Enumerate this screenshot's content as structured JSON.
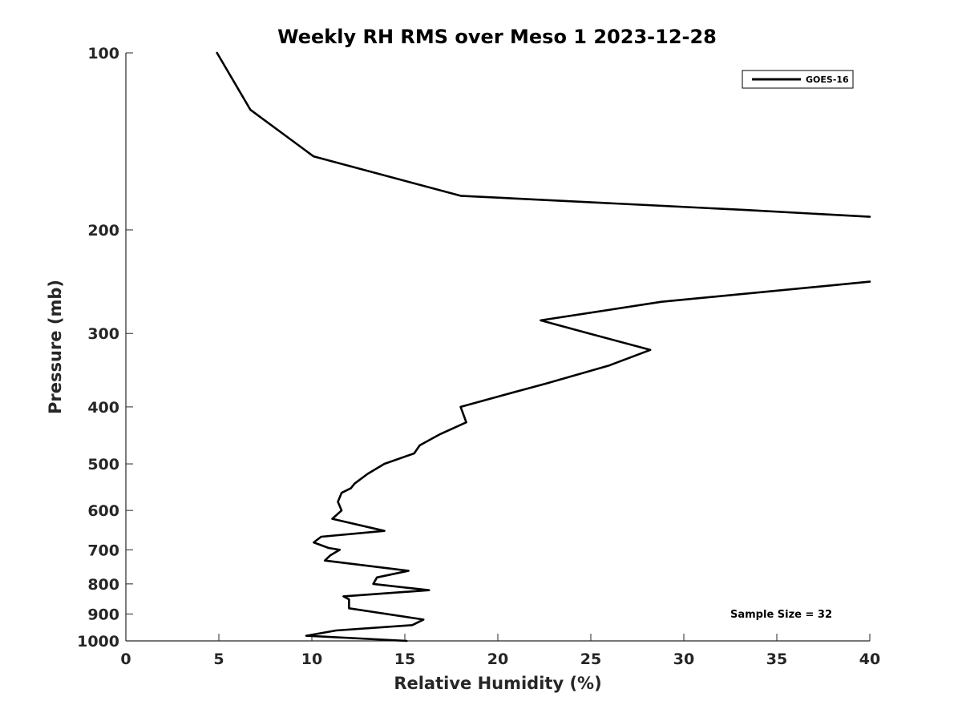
{
  "chart_data": {
    "type": "line",
    "title": "Weekly RH RMS over Meso 1 2023-12-28",
    "xlabel": "Relative Humidity (%)",
    "ylabel": "Pressure (mb)",
    "xlim": [
      0,
      40
    ],
    "ylim": [
      100,
      1000
    ],
    "y_scale": "log",
    "y_reversed": true,
    "x_ticks": [
      0,
      5,
      10,
      15,
      20,
      25,
      30,
      35,
      40
    ],
    "y_ticks": [
      100,
      200,
      300,
      400,
      500,
      600,
      700,
      800,
      900,
      1000
    ],
    "grid": false,
    "legend_position": "top-right",
    "annotation": "Sample Size = 32",
    "series": [
      {
        "name": "GOES-16",
        "color": "#000000",
        "points": [
          [
            4.9,
            100
          ],
          [
            6.7,
            125
          ],
          [
            10.1,
            150
          ],
          [
            18.0,
            175
          ],
          [
            33.3,
            185
          ],
          [
            40,
            190
          ],
          [
            null,
            null
          ],
          [
            40,
            245
          ],
          [
            28.8,
            265
          ],
          [
            22.3,
            285
          ],
          [
            24.9,
            300
          ],
          [
            28.2,
            320
          ],
          [
            26.0,
            340
          ],
          [
            22.6,
            365
          ],
          [
            19.9,
            385
          ],
          [
            18.0,
            400
          ],
          [
            18.3,
            425
          ],
          [
            16.9,
            445
          ],
          [
            15.8,
            465
          ],
          [
            15.5,
            480
          ],
          [
            13.9,
            500
          ],
          [
            13.0,
            520
          ],
          [
            12.3,
            540
          ],
          [
            12.1,
            550
          ],
          [
            11.6,
            560
          ],
          [
            11.4,
            580
          ],
          [
            11.6,
            600
          ],
          [
            11.1,
            620
          ],
          [
            13.9,
            650
          ],
          [
            10.5,
            665
          ],
          [
            10.1,
            680
          ],
          [
            10.9,
            695
          ],
          [
            11.5,
            700
          ],
          [
            11.0,
            715
          ],
          [
            10.7,
            730
          ],
          [
            15.2,
            760
          ],
          [
            13.5,
            780
          ],
          [
            13.3,
            800
          ],
          [
            16.3,
            820
          ],
          [
            11.7,
            840
          ],
          [
            12.0,
            850
          ],
          [
            12.0,
            880
          ],
          [
            16.0,
            920
          ],
          [
            15.4,
            940
          ],
          [
            11.3,
            960
          ],
          [
            9.7,
            980
          ],
          [
            15.1,
            1000
          ]
        ]
      }
    ]
  }
}
